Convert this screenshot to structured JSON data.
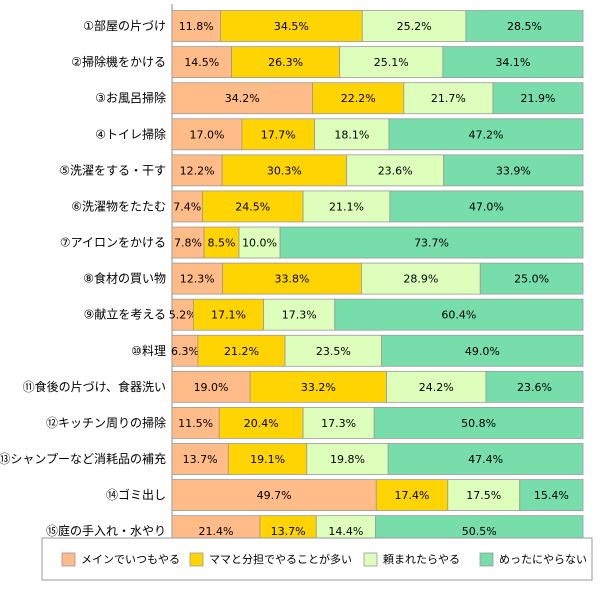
{
  "chart_data": {
    "type": "bar",
    "orientation": "horizontal",
    "stacked": "percent",
    "categories": [
      "①部屋の片づけ",
      "②掃除機をかける",
      "③お風呂掃除",
      "④トイレ掃除",
      "⑤洗濯をする・干す",
      "⑥洗濯物をたたむ",
      "⑦アイロンをかける",
      "⑧食材の買い物",
      "⑨献立を考える",
      "⑩料理",
      "⑪食後の片づけ、食器洗い",
      "⑫キッチン周りの掃除",
      "⑬シャンプーなど消耗品の補充",
      "⑭ゴミ出し",
      "⑮庭の手入れ・水やり"
    ],
    "series": [
      {
        "name": "メインでいつもやる",
        "color": "#FFBB88",
        "values": [
          11.8,
          14.5,
          34.2,
          17.0,
          12.2,
          7.4,
          7.8,
          12.3,
          5.2,
          6.3,
          19.0,
          11.5,
          13.7,
          49.7,
          21.4
        ]
      },
      {
        "name": "ママと分担でやることが多い",
        "color": "#FFD400",
        "values": [
          34.5,
          26.3,
          22.2,
          17.7,
          30.3,
          24.5,
          8.5,
          33.8,
          17.1,
          21.2,
          33.2,
          20.4,
          19.1,
          17.4,
          13.7
        ]
      },
      {
        "name": "頼まれたらやる",
        "color": "#DDFFBB",
        "values": [
          25.2,
          25.1,
          21.7,
          18.1,
          23.6,
          21.1,
          10.0,
          28.9,
          17.3,
          23.5,
          24.2,
          17.3,
          19.8,
          17.5,
          14.4
        ]
      },
      {
        "name": "めったにやらない",
        "color": "#77DDAA",
        "values": [
          28.5,
          34.1,
          21.9,
          47.2,
          33.9,
          47.0,
          73.7,
          25.0,
          60.4,
          49.0,
          23.6,
          50.8,
          47.4,
          15.4,
          50.5
        ]
      }
    ],
    "value_suffix": "%",
    "xlim": [
      0,
      100
    ],
    "legend_position": "bottom",
    "grid": false
  }
}
